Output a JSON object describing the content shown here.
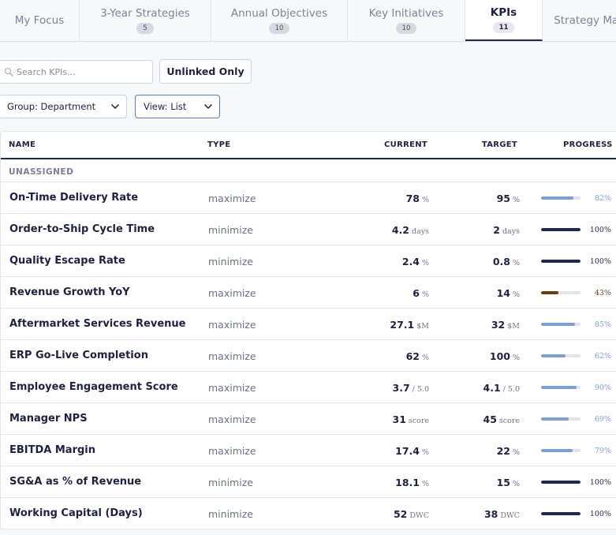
{
  "tabs": [
    {
      "label": "My Focus",
      "count": "",
      "active": false,
      "width": 101
    },
    {
      "label": "3-Year Strategies",
      "count": "5",
      "active": false,
      "width": 167
    },
    {
      "label": "Annual Objectives",
      "count": "10",
      "active": false,
      "width": 173
    },
    {
      "label": "Key Initiatives",
      "count": "10",
      "active": false,
      "width": 149
    },
    {
      "label": "KPIs",
      "count": "11",
      "active": true,
      "width": 98
    },
    {
      "label": "Strategy Map",
      "count": "",
      "active": false,
      "width": 120
    }
  ],
  "toolbar": {
    "search_placeholder": "Search KPIs...",
    "unlinked_label": "Unlinked Only",
    "group_select": "Group: Department",
    "view_select": "View: List"
  },
  "table": {
    "headers": {
      "name": "NAME",
      "type": "TYPE",
      "current": "CURRENT",
      "target": "TARGET",
      "progress": "PROGRESS"
    },
    "group_label": "UNASSIGNED",
    "rows": [
      {
        "name": "On-Time Delivery Rate",
        "type": "maximize",
        "current": "78",
        "current_unit": "%",
        "target": "95",
        "target_unit": "%",
        "progress": 82,
        "progress_label": "82%",
        "color": "#7b9fd2"
      },
      {
        "name": "Order-to-Ship Cycle Time",
        "type": "minimize",
        "current": "4.2",
        "current_unit": "days",
        "target": "2",
        "target_unit": "days",
        "progress": 100,
        "progress_label": "100%",
        "color": "#1c2a4d"
      },
      {
        "name": "Quality Escape Rate",
        "type": "minimize",
        "current": "2.4",
        "current_unit": "%",
        "target": "0.8",
        "target_unit": "%",
        "progress": 100,
        "progress_label": "100%",
        "color": "#1c2a4d"
      },
      {
        "name": "Revenue Growth YoY",
        "type": "maximize",
        "current": "6",
        "current_unit": "%",
        "target": "14",
        "target_unit": "%",
        "progress": 43,
        "progress_label": "43%",
        "color": "#6b3e12"
      },
      {
        "name": "Aftermarket Services Revenue",
        "type": "maximize",
        "current": "27.1",
        "current_unit": "$M",
        "target": "32",
        "target_unit": "$M",
        "progress": 85,
        "progress_label": "85%",
        "color": "#7b9fd2"
      },
      {
        "name": "ERP Go-Live Completion",
        "type": "maximize",
        "current": "62",
        "current_unit": "%",
        "target": "100",
        "target_unit": "%",
        "progress": 62,
        "progress_label": "62%",
        "color": "#7b9fd2"
      },
      {
        "name": "Employee Engagement Score",
        "type": "maximize",
        "current": "3.7",
        "current_unit": "/ 5.0",
        "target": "4.1",
        "target_unit": "/ 5.0",
        "progress": 90,
        "progress_label": "90%",
        "color": "#7b9fd2"
      },
      {
        "name": "Manager NPS",
        "type": "maximize",
        "current": "31",
        "current_unit": "score",
        "target": "45",
        "target_unit": "score",
        "progress": 69,
        "progress_label": "69%",
        "color": "#7b9fd2"
      },
      {
        "name": "EBITDA Margin",
        "type": "maximize",
        "current": "17.4",
        "current_unit": "%",
        "target": "22",
        "target_unit": "%",
        "progress": 79,
        "progress_label": "79%",
        "color": "#7b9fd2"
      },
      {
        "name": "SG&A as % of Revenue",
        "type": "minimize",
        "current": "18.1",
        "current_unit": "%",
        "target": "15",
        "target_unit": "%",
        "progress": 100,
        "progress_label": "100%",
        "color": "#1c2a4d"
      },
      {
        "name": "Working Capital (Days)",
        "type": "minimize",
        "current": "52",
        "current_unit": "DWC",
        "target": "38",
        "target_unit": "DWC",
        "progress": 100,
        "progress_label": "100%",
        "color": "#1c2a4d"
      }
    ]
  }
}
